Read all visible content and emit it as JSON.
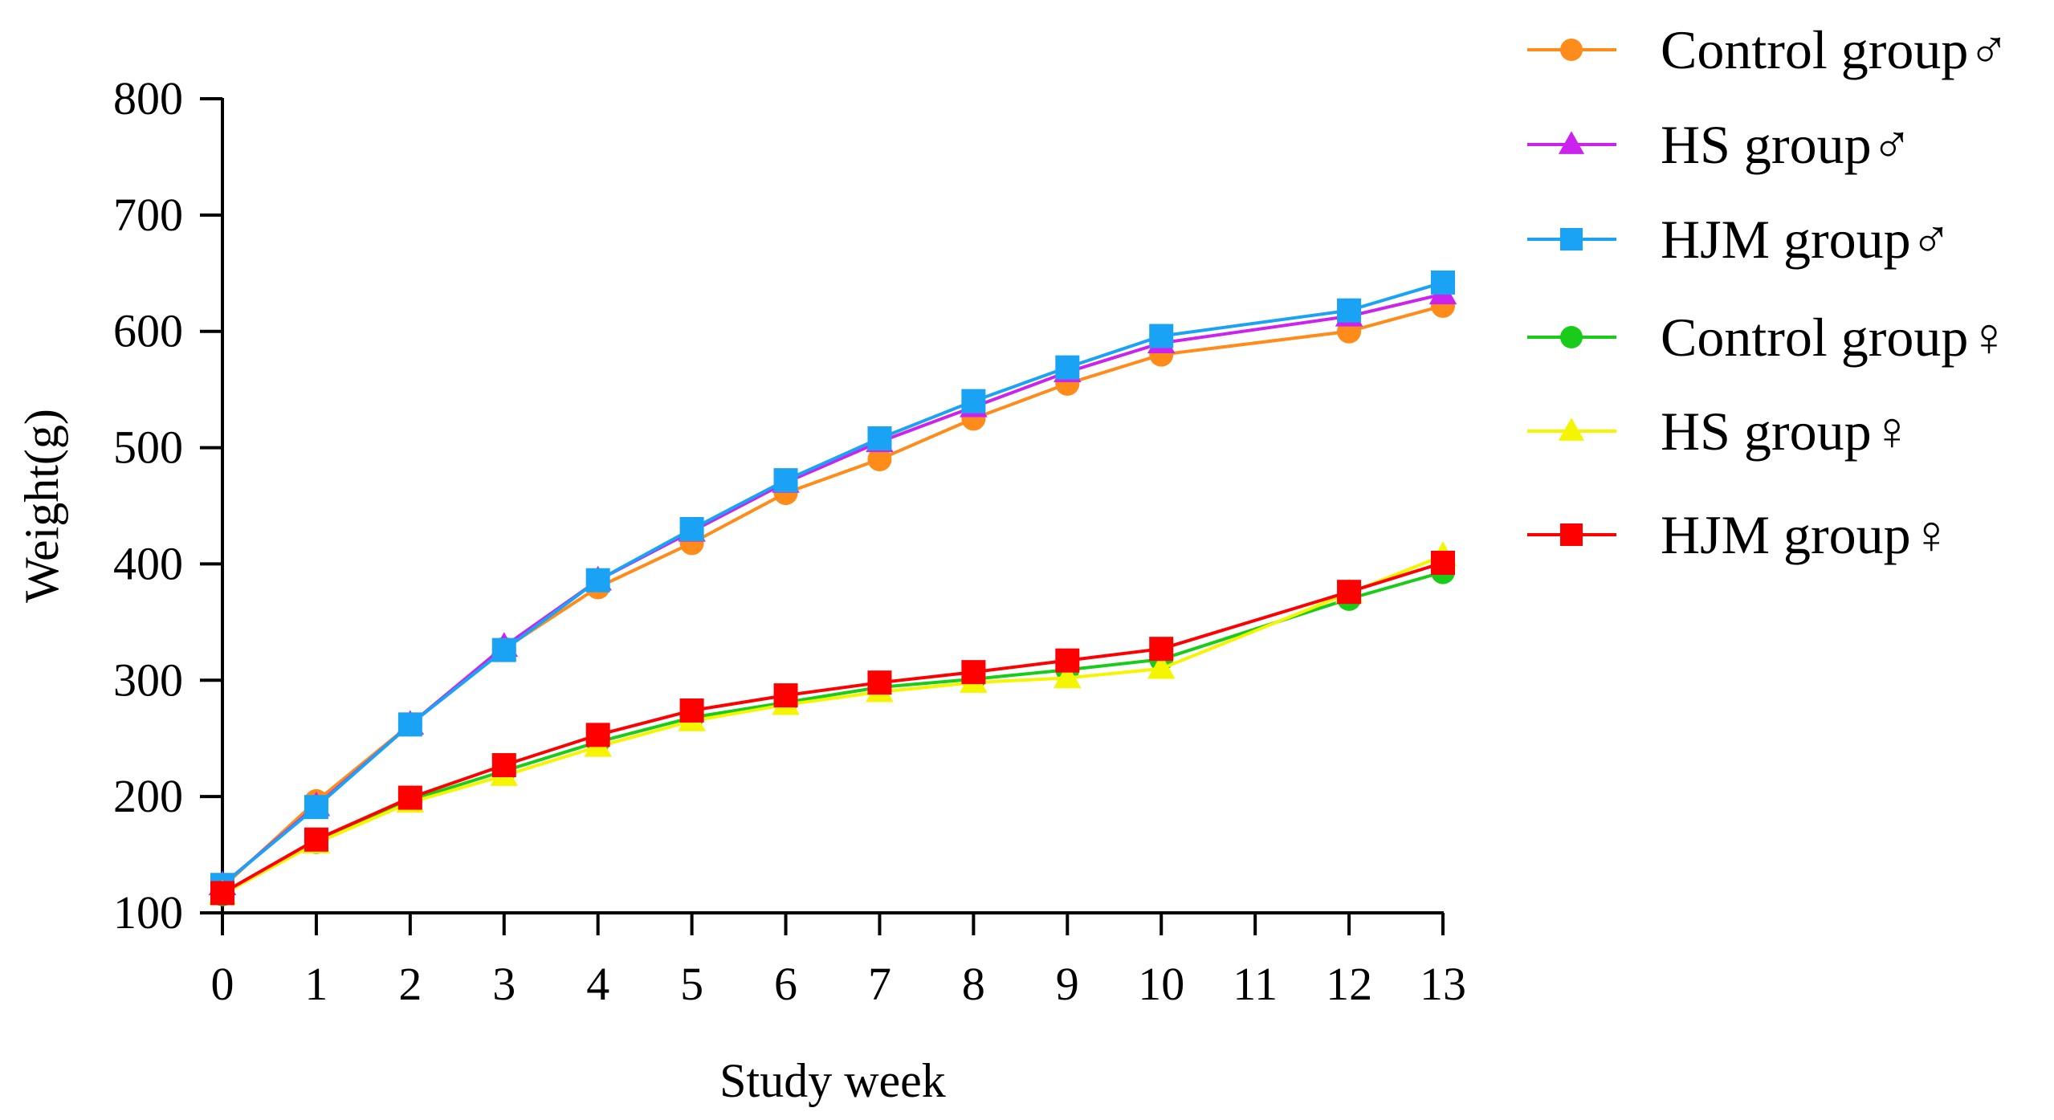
{
  "chart_data": {
    "type": "line",
    "title": "",
    "xlabel": "Study week",
    "ylabel": "Weight(g)",
    "xlim": [
      0,
      13
    ],
    "ylim": [
      100,
      800
    ],
    "x_ticks": [
      0,
      1,
      2,
      3,
      4,
      5,
      6,
      7,
      8,
      9,
      10,
      11,
      12,
      13
    ],
    "x_tick_labels": [
      "0",
      "1",
      "2",
      "3",
      "4",
      "5",
      "6",
      "7",
      "8",
      "9",
      "10",
      "11",
      "12",
      "13"
    ],
    "y_ticks": [
      100,
      200,
      300,
      400,
      500,
      600,
      700,
      800
    ],
    "y_tick_labels": [
      "100",
      "200",
      "300",
      "400",
      "500",
      "600",
      "700",
      "800"
    ],
    "grid": false,
    "legend_position": "right",
    "series": [
      {
        "name": "Control group♂",
        "color": "#FF8C1A",
        "marker": "circle",
        "x": [
          0,
          1,
          2,
          3,
          4,
          5,
          6,
          7,
          8,
          9,
          10,
          12,
          13
        ],
        "values": [
          122,
          196,
          262,
          327,
          380,
          418,
          461,
          490,
          525,
          555,
          580,
          600,
          622
        ]
      },
      {
        "name": "HS group♂",
        "color": "#CC22EE",
        "marker": "triangle",
        "x": [
          0,
          1,
          2,
          3,
          4,
          5,
          6,
          7,
          8,
          9,
          10,
          12,
          13
        ],
        "values": [
          124,
          192,
          262,
          329,
          386,
          428,
          470,
          505,
          535,
          565,
          590,
          613,
          632
        ]
      },
      {
        "name": "HJM group♂",
        "color": "#1AA3F5",
        "marker": "square",
        "x": [
          0,
          1,
          2,
          3,
          4,
          5,
          6,
          7,
          8,
          9,
          10,
          12,
          13
        ],
        "values": [
          124,
          191,
          262,
          326,
          386,
          430,
          472,
          508,
          540,
          569,
          596,
          618,
          642
        ]
      },
      {
        "name": "Control group♀",
        "color": "#1ACC1A",
        "marker": "circle",
        "x": [
          0,
          1,
          2,
          3,
          4,
          5,
          6,
          7,
          8,
          9,
          10,
          12,
          13
        ],
        "values": [
          116,
          161,
          197,
          222,
          247,
          268,
          281,
          294,
          301,
          309,
          318,
          370,
          393
        ]
      },
      {
        "name": "HS group♀",
        "color": "#F5F500",
        "marker": "triangle",
        "x": [
          0,
          1,
          2,
          3,
          4,
          5,
          6,
          7,
          8,
          9,
          10,
          12,
          13
        ],
        "values": [
          116,
          160,
          195,
          218,
          243,
          265,
          279,
          290,
          298,
          302,
          310,
          375,
          407
        ]
      },
      {
        "name": "HJM group♀",
        "color": "#FF0000",
        "marker": "square",
        "x": [
          0,
          1,
          2,
          3,
          4,
          5,
          6,
          7,
          8,
          9,
          10,
          12,
          13
        ],
        "values": [
          117,
          163,
          199,
          227,
          253,
          274,
          287,
          298,
          307,
          317,
          327,
          376,
          401
        ]
      }
    ]
  }
}
